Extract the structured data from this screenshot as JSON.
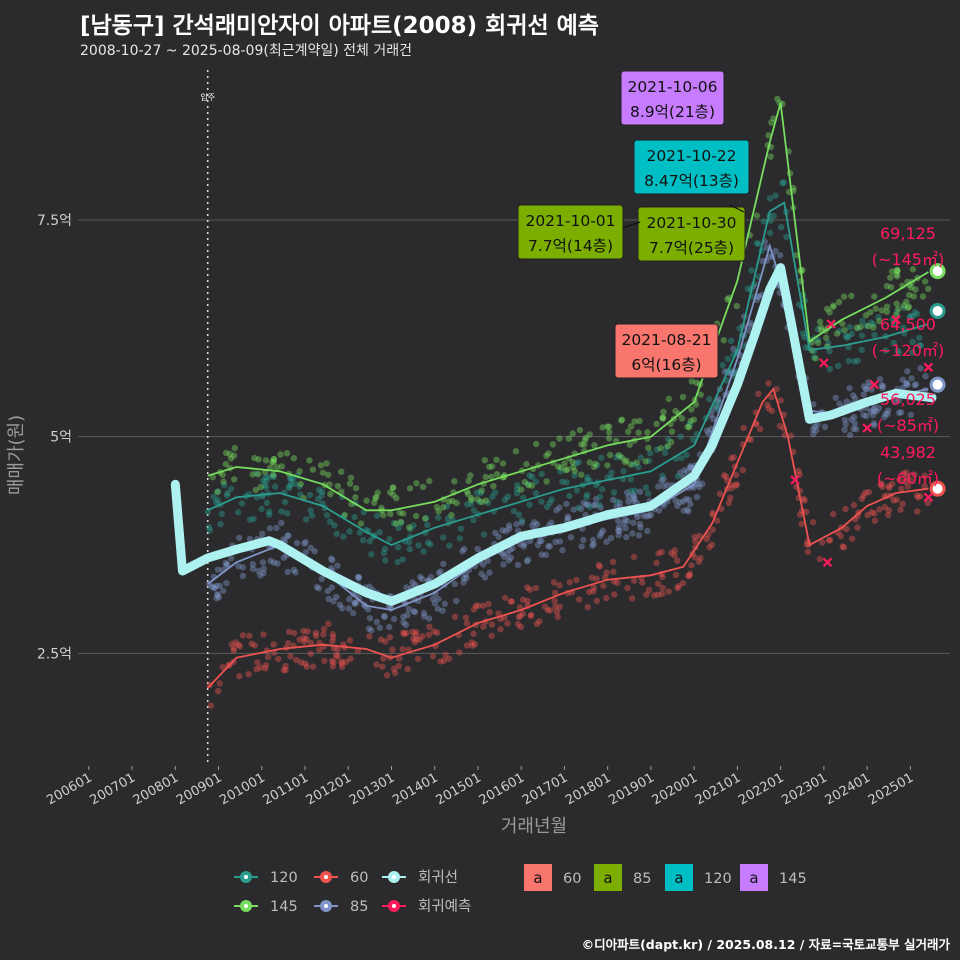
{
  "title": "[남동구] 간석래미안자이 아파트(2008) 회귀선 예측",
  "subtitle": "2008-10-27 ~ 2025-08-09(최근계약일) 전체 거래건",
  "caption": "©디아파트(dapt.kr) / 2025.08.12 / 자료=국토교통부 실거래가",
  "colors": {
    "background": "#2b2b2d",
    "grid": "#5a5a5a",
    "s60": "#ef5350",
    "s85": "#7f95c8",
    "s120": "#2a9d8f",
    "s145": "#77dd5f",
    "regression": "#aef1f1",
    "forecast": "#ff1a5c",
    "label60": "#f8766d",
    "label85": "#7cae00",
    "label120": "#00bfc4",
    "label145": "#c77cff"
  },
  "chart_data": {
    "type": "scatter",
    "xlabel": "거래년월",
    "ylabel": "매매가(원)",
    "ylim": [
      1.2,
      9.3
    ],
    "yticks": [
      {
        "value": 2.5,
        "label": "2.5억"
      },
      {
        "value": 5,
        "label": "5억"
      },
      {
        "value": 7.5,
        "label": "7.5억"
      }
    ],
    "xlim": [
      "2005-10",
      "2025-12"
    ],
    "xticks": [
      "200601",
      "200701",
      "200801",
      "200901",
      "201001",
      "201101",
      "201201",
      "201301",
      "201401",
      "201501",
      "201601",
      "201701",
      "201801",
      "201901",
      "202001",
      "202101",
      "202201",
      "202301",
      "202401",
      "202501"
    ],
    "grid": true,
    "vline": {
      "x": "2008-10",
      "label": "입주"
    },
    "series": [
      {
        "name": "60",
        "unit_label": "~60㎡",
        "color": "#ef5350",
        "points": [
          [
            "2008-10",
            2.1
          ],
          [
            "2009-06",
            2.45
          ],
          [
            "2010-06",
            2.55
          ],
          [
            "2011-06",
            2.6
          ],
          [
            "2012-06",
            2.55
          ],
          [
            "2013-01",
            2.45
          ],
          [
            "2014-01",
            2.6
          ],
          [
            "2015-01",
            2.85
          ],
          [
            "2016-01",
            3.0
          ],
          [
            "2017-01",
            3.2
          ],
          [
            "2018-01",
            3.35
          ],
          [
            "2019-01",
            3.4
          ],
          [
            "2019-10",
            3.5
          ],
          [
            "2020-06",
            4.0
          ],
          [
            "2021-01",
            4.7
          ],
          [
            "2021-08",
            5.4
          ],
          [
            "2021-11",
            5.55
          ],
          [
            "2022-03",
            5.0
          ],
          [
            "2022-09",
            3.75
          ],
          [
            "2023-06",
            3.95
          ],
          [
            "2024-01",
            4.2
          ],
          [
            "2024-09",
            4.35
          ],
          [
            "2025-06",
            4.4
          ]
        ]
      },
      {
        "name": "85",
        "unit_label": "~85㎡",
        "color": "#7f95c8",
        "points": [
          [
            "2008-10",
            3.3
          ],
          [
            "2009-06",
            3.55
          ],
          [
            "2010-06",
            3.75
          ],
          [
            "2011-06",
            3.45
          ],
          [
            "2012-06",
            3.05
          ],
          [
            "2013-01",
            3.0
          ],
          [
            "2014-01",
            3.2
          ],
          [
            "2015-01",
            3.55
          ],
          [
            "2016-01",
            3.8
          ],
          [
            "2017-01",
            3.95
          ],
          [
            "2018-01",
            4.05
          ],
          [
            "2019-01",
            4.15
          ],
          [
            "2020-01",
            4.45
          ],
          [
            "2021-01",
            5.9
          ],
          [
            "2021-10",
            7.2
          ],
          [
            "2022-01",
            6.8
          ],
          [
            "2022-09",
            5.3
          ],
          [
            "2023-06",
            5.25
          ],
          [
            "2024-06",
            5.45
          ],
          [
            "2025-06",
            5.55
          ]
        ]
      },
      {
        "name": "120",
        "unit_label": "~120㎡",
        "color": "#2a9d8f",
        "points": [
          [
            "2008-10",
            4.15
          ],
          [
            "2009-06",
            4.3
          ],
          [
            "2010-06",
            4.35
          ],
          [
            "2011-06",
            4.2
          ],
          [
            "2012-06",
            3.9
          ],
          [
            "2013-01",
            3.75
          ],
          [
            "2014-01",
            3.95
          ],
          [
            "2015-01",
            4.1
          ],
          [
            "2016-01",
            4.25
          ],
          [
            "2017-01",
            4.4
          ],
          [
            "2018-01",
            4.5
          ],
          [
            "2019-01",
            4.6
          ],
          [
            "2020-01",
            4.9
          ],
          [
            "2021-01",
            6.0
          ],
          [
            "2021-10",
            7.6
          ],
          [
            "2022-02",
            7.7
          ],
          [
            "2022-09",
            6.0
          ],
          [
            "2023-06",
            6.05
          ],
          [
            "2024-06",
            6.15
          ],
          [
            "2025-06",
            6.3
          ]
        ]
      },
      {
        "name": "145",
        "unit_label": "~145㎡",
        "color": "#77dd5f",
        "points": [
          [
            "2008-10",
            4.55
          ],
          [
            "2009-06",
            4.65
          ],
          [
            "2010-06",
            4.6
          ],
          [
            "2011-06",
            4.45
          ],
          [
            "2012-06",
            4.15
          ],
          [
            "2013-01",
            4.15
          ],
          [
            "2014-01",
            4.25
          ],
          [
            "2015-01",
            4.45
          ],
          [
            "2016-01",
            4.6
          ],
          [
            "2017-01",
            4.75
          ],
          [
            "2018-01",
            4.9
          ],
          [
            "2019-01",
            5.0
          ],
          [
            "2020-01",
            5.4
          ],
          [
            "2021-01",
            6.8
          ],
          [
            "2021-10",
            8.4
          ],
          [
            "2022-01",
            8.85
          ],
          [
            "2022-09",
            6.1
          ],
          [
            "2023-06",
            6.35
          ],
          [
            "2024-06",
            6.6
          ],
          [
            "2025-06",
            6.9
          ]
        ]
      },
      {
        "name": "회귀선",
        "color": "#aef1f1",
        "points": [
          [
            "2008-01",
            4.45
          ],
          [
            "2008-03",
            3.45
          ],
          [
            "2008-10",
            3.6
          ],
          [
            "2009-06",
            3.7
          ],
          [
            "2010-03",
            3.8
          ],
          [
            "2010-06",
            3.75
          ],
          [
            "2011-06",
            3.45
          ],
          [
            "2012-06",
            3.2
          ],
          [
            "2013-01",
            3.1
          ],
          [
            "2014-01",
            3.3
          ],
          [
            "2015-01",
            3.6
          ],
          [
            "2016-01",
            3.85
          ],
          [
            "2017-01",
            3.95
          ],
          [
            "2018-01",
            4.1
          ],
          [
            "2019-01",
            4.2
          ],
          [
            "2020-01",
            4.55
          ],
          [
            "2020-06",
            4.9
          ],
          [
            "2021-01",
            5.6
          ],
          [
            "2021-06",
            6.2
          ],
          [
            "2021-10",
            6.7
          ],
          [
            "2022-01",
            6.95
          ],
          [
            "2022-04",
            6.3
          ],
          [
            "2022-09",
            5.2
          ],
          [
            "2023-03",
            5.25
          ],
          [
            "2024-01",
            5.4
          ],
          [
            "2024-09",
            5.5
          ],
          [
            "2025-07",
            5.45
          ]
        ]
      }
    ],
    "forecast": [
      {
        "size": "145",
        "value": 69125,
        "label_value": "69,125",
        "label_unit": "(~145㎡)",
        "x": "2025-08",
        "y": 6.91
      },
      {
        "size": "120",
        "value": 64500,
        "label_value": "64,500",
        "label_unit": "(~120㎡)",
        "x": "2025-08",
        "y": 6.45
      },
      {
        "size": "85",
        "value": 56025,
        "label_value": "56,025",
        "label_unit": "(~85㎡)",
        "x": "2025-08",
        "y": 5.6
      },
      {
        "size": "60",
        "value": 43982,
        "label_value": "43,982",
        "label_unit": "(~60㎡)",
        "x": "2025-08",
        "y": 4.4
      }
    ],
    "annotations": [
      {
        "date": "2021-10-06",
        "price": "8.9억(21층)",
        "size": "145",
        "x": "2021-10",
        "y": 8.9
      },
      {
        "date": "2021-10-22",
        "price": "8.47억(13층)",
        "size": "120",
        "x": "2021-10",
        "y": 8.47
      },
      {
        "date": "2021-10-01",
        "price": "7.7억(14층)",
        "size": "85",
        "x": "2021-10",
        "y": 7.7
      },
      {
        "date": "2021-10-30",
        "price": "7.7억(25층)",
        "size": "85",
        "x": "2021-10",
        "y": 7.7
      },
      {
        "date": "2021-08-21",
        "price": "6억(16층)",
        "size": "60",
        "x": "2021-08",
        "y": 6.0
      }
    ],
    "legend": {
      "position": "bottom",
      "lines": [
        {
          "key": "120",
          "label": "120"
        },
        {
          "key": "60",
          "label": "60"
        },
        {
          "key": "reg",
          "label": "회귀선"
        },
        {
          "key": "145",
          "label": "145"
        },
        {
          "key": "85",
          "label": "85"
        },
        {
          "key": "fc",
          "label": "회귀예측"
        }
      ],
      "boxes_symbol": "a",
      "boxes": [
        {
          "key": "60",
          "label": "60"
        },
        {
          "key": "85",
          "label": "85"
        },
        {
          "key": "120",
          "label": "120"
        },
        {
          "key": "145",
          "label": "145"
        }
      ]
    }
  }
}
